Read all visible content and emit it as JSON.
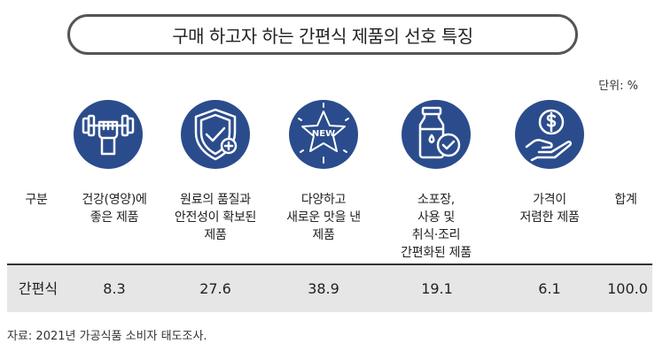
{
  "title": "구매 하고자 하는 간편식 제품의 선호 특징",
  "unit": "단위: %",
  "icon_color": "#2b4c8c",
  "columns": [
    {
      "lines": [
        "구분"
      ]
    },
    {
      "lines": [
        "건강(영양)에",
        "좋은 제품"
      ],
      "icon": "dumbbell-fist-icon"
    },
    {
      "lines": [
        "원료의 품질과",
        "안전성이 확보된",
        "제품"
      ],
      "icon": "shield-check-icon"
    },
    {
      "lines": [
        "다양하고",
        "새로운 맛을 낸",
        "제품"
      ],
      "icon": "new-star-badge-icon"
    },
    {
      "lines": [
        "소포장,",
        "사용 및",
        "취식·조리",
        "간편화된 제품"
      ],
      "icon": "milk-bottle-check-icon"
    },
    {
      "lines": [
        "가격이",
        "저렴한 제품"
      ],
      "icon": "dollar-hand-icon"
    },
    {
      "lines": [
        "합계"
      ]
    }
  ],
  "row": {
    "label": "간편식",
    "values": [
      "8.3",
      "27.6",
      "38.9",
      "19.1",
      "6.1",
      "100.0"
    ]
  },
  "source": "자료: 2021년 가공식품 소비자 태도조사.",
  "chart_data": {
    "type": "table",
    "title": "구매 하고자 하는 간편식 제품의 선호 특징",
    "unit": "단위: %",
    "categories": [
      "건강(영양)에 좋은 제품",
      "원료의 품질과 안전성이 확보된 제품",
      "다양하고 새로운 맛을 낸 제품",
      "소포장, 사용 및 취식·조리 간편화된 제품",
      "가격이 저렴한 제품",
      "합계"
    ],
    "series": [
      {
        "name": "간편식",
        "values": [
          8.3,
          27.6,
          38.9,
          19.1,
          6.1,
          100.0
        ]
      }
    ]
  }
}
